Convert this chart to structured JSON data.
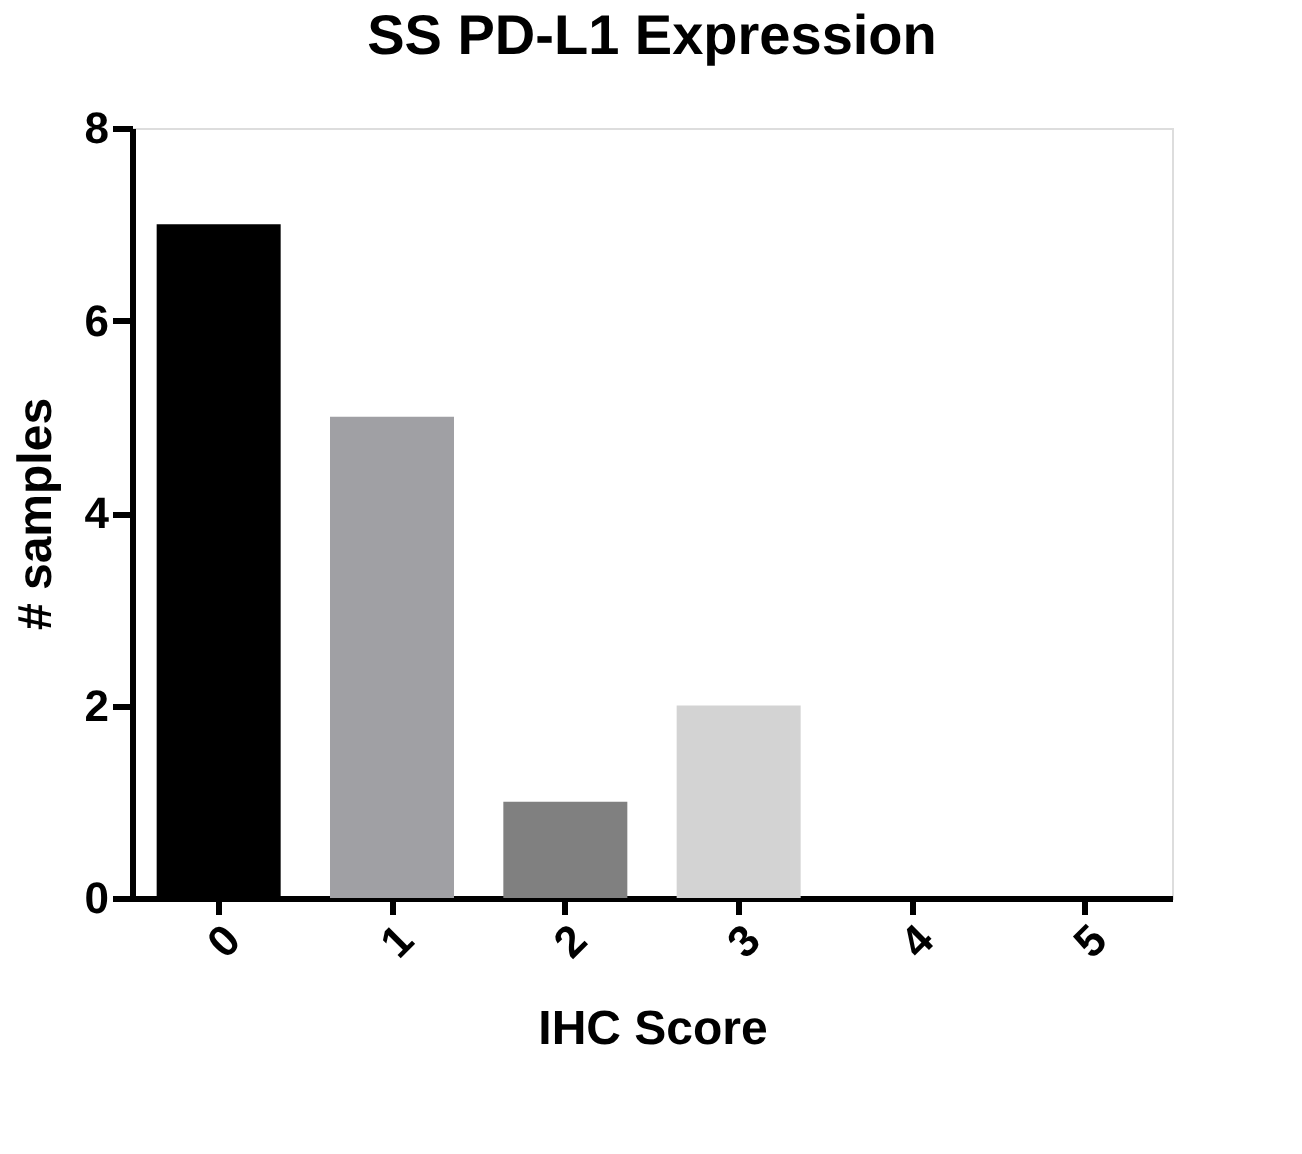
{
  "chart_data": {
    "type": "bar",
    "title": "SS PD-L1 Expression",
    "xlabel": "IHC Score",
    "ylabel": "# samples",
    "categories": [
      "0",
      "1",
      "2",
      "3",
      "4",
      "5"
    ],
    "values": [
      7,
      5,
      1,
      2,
      0,
      0
    ],
    "colors": [
      "#000000",
      "#a0a0a4",
      "#808080",
      "#d3d3d3",
      "#b0b0b0",
      "#b0b0b0"
    ],
    "ylim": [
      0,
      8
    ],
    "yticks": [
      0,
      2,
      4,
      6,
      8
    ],
    "grid": false,
    "legend": false
  }
}
